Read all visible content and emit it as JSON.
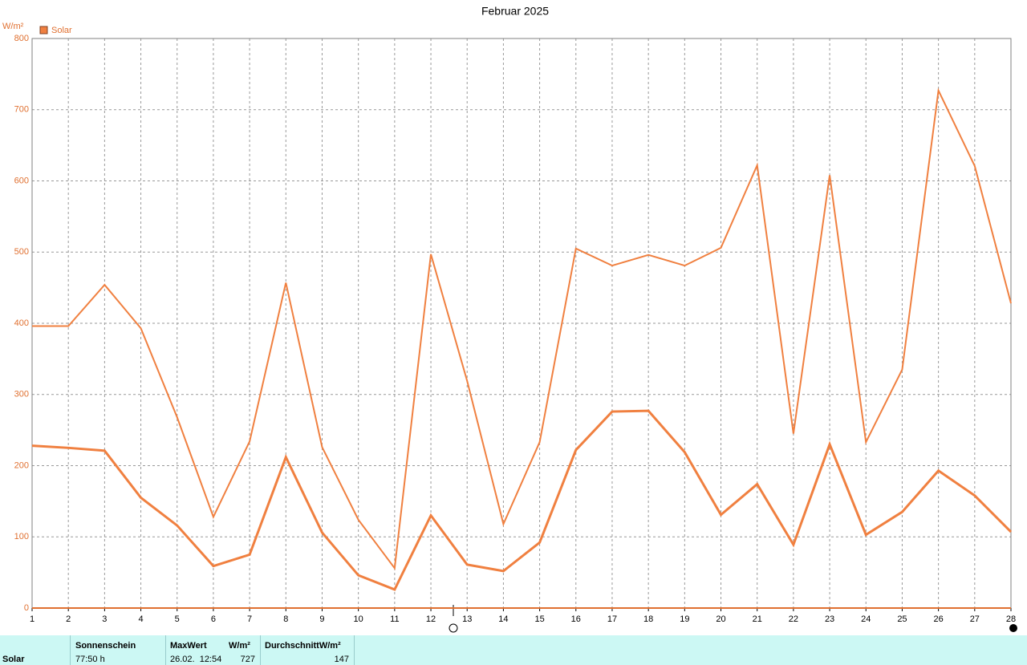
{
  "chart_data": {
    "type": "line",
    "title": "Februar 2025",
    "y_label": "W/m²",
    "x": [
      1,
      2,
      3,
      4,
      5,
      6,
      7,
      8,
      9,
      10,
      11,
      12,
      13,
      14,
      15,
      16,
      17,
      18,
      19,
      20,
      21,
      22,
      23,
      24,
      25,
      26,
      27,
      28
    ],
    "series": [
      {
        "name": "Solar",
        "color": "#f08040",
        "values": [
          396,
          396,
          454,
          393,
          268,
          128,
          234,
          457,
          226,
          124,
          56,
          497,
          319,
          118,
          233,
          505,
          481,
          496,
          481,
          506,
          622,
          245,
          608,
          233,
          335,
          727,
          621,
          428
        ]
      },
      {
        "color": "#f08040",
        "values": [
          228,
          225,
          221,
          155,
          116,
          59,
          75,
          212,
          106,
          46,
          26,
          130,
          61,
          52,
          92,
          222,
          276,
          277,
          219,
          131,
          174,
          89,
          230,
          103,
          135,
          193,
          158,
          107
        ]
      }
    ],
    "xlim": [
      1,
      28
    ],
    "xticks": [
      1,
      2,
      3,
      4,
      5,
      6,
      7,
      8,
      9,
      10,
      11,
      12,
      13,
      14,
      15,
      16,
      17,
      18,
      19,
      20,
      21,
      22,
      23,
      24,
      25,
      26,
      27,
      28
    ],
    "ylim": [
      0,
      800
    ],
    "yticks": [
      0,
      100,
      200,
      300,
      400,
      500,
      600,
      700,
      800
    ],
    "grid": true
  },
  "table": {
    "header": [
      "Sonnenschein",
      "MaxWert",
      "W/m²",
      "DurchschnittW/m²"
    ],
    "row": [
      "Solar",
      "77:50 h",
      "26.02.  12:54",
      "727",
      "147"
    ]
  }
}
